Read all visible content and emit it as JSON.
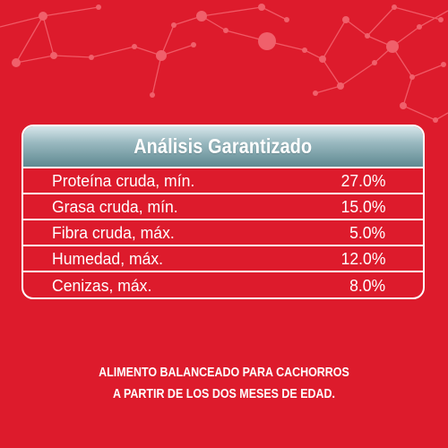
{
  "analysis": {
    "title": "Análisis Garantizado",
    "rows": [
      {
        "label": "Proteína cruda, mín.",
        "value": "27.0%"
      },
      {
        "label": "Grasa cruda, mín.",
        "value": "15.0%"
      },
      {
        "label": "Fibra cruda, máx.",
        "value": "5.0%"
      },
      {
        "label": "Humedad, máx.",
        "value": "12.0%"
      },
      {
        "label": "Cenizas, máx.",
        "value": "8.0%"
      }
    ]
  },
  "footer": {
    "line1": "ALIMENTO BALANCEADO PARA CACHORROS",
    "line2": "A PARTIR DE LOS DOS MESES DE EDAD."
  },
  "colors": {
    "background": "#dd1b2c",
    "network": "#f05a66",
    "header_gradient_top": "#d7e6ea",
    "header_gradient_bottom": "#5f8991",
    "text": "#ffffff"
  }
}
